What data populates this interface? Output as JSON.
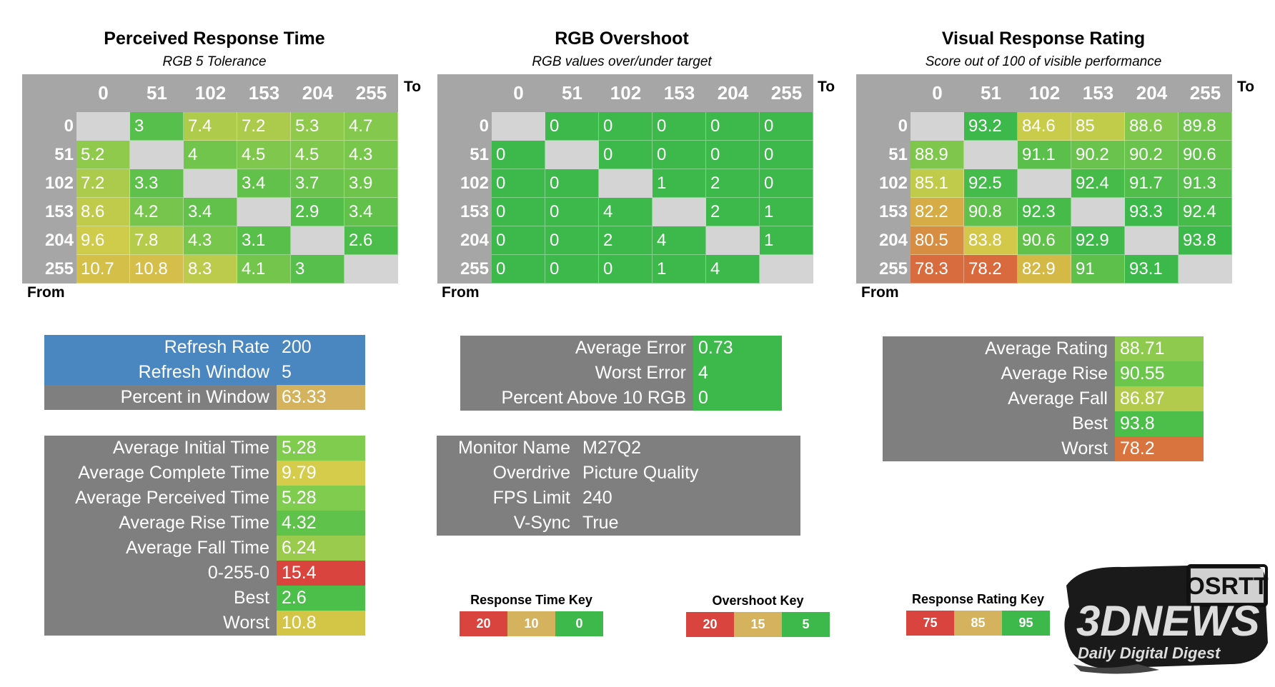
{
  "charts": [
    {
      "title": "Perceived Response Time",
      "subtitle": "RGB 5 Tolerance",
      "to_label": "To",
      "from_label": "From",
      "scale": "rt"
    },
    {
      "title": "RGB Overshoot",
      "subtitle": "RGB values over/under target",
      "to_label": "To",
      "from_label": "From",
      "scale": "os"
    },
    {
      "title": "Visual Response Rating",
      "subtitle": "Score out of 100 of visible performance",
      "to_label": "To",
      "from_label": "From",
      "scale": "vr"
    }
  ],
  "chart_data": [
    {
      "type": "heatmap",
      "title": "Perceived Response Time",
      "subtitle": "RGB 5 Tolerance",
      "xlabel": "To",
      "ylabel": "From",
      "categories": [
        "0",
        "51",
        "102",
        "153",
        "204",
        "255"
      ],
      "values": [
        [
          null,
          3,
          7.4,
          7.2,
          5.3,
          4.7
        ],
        [
          5.2,
          null,
          4,
          4.5,
          4.5,
          4.3
        ],
        [
          7.2,
          3.3,
          null,
          3.4,
          3.7,
          3.9
        ],
        [
          8.6,
          4.2,
          3.4,
          null,
          2.9,
          3.4
        ],
        [
          9.6,
          7.8,
          4.3,
          3.1,
          null,
          2.6
        ],
        [
          10.7,
          10.8,
          8.3,
          4.1,
          3,
          null
        ]
      ]
    },
    {
      "type": "heatmap",
      "title": "RGB Overshoot",
      "subtitle": "RGB values over/under target",
      "xlabel": "To",
      "ylabel": "From",
      "categories": [
        "0",
        "51",
        "102",
        "153",
        "204",
        "255"
      ],
      "values": [
        [
          null,
          0,
          0,
          0,
          0,
          0
        ],
        [
          0,
          null,
          0,
          0,
          0,
          0
        ],
        [
          0,
          0,
          null,
          1,
          2,
          0
        ],
        [
          0,
          0,
          4,
          null,
          2,
          1
        ],
        [
          0,
          0,
          2,
          4,
          null,
          1
        ],
        [
          0,
          0,
          0,
          1,
          4,
          null
        ]
      ]
    },
    {
      "type": "heatmap",
      "title": "Visual Response Rating",
      "subtitle": "Score out of 100 of visible performance",
      "xlabel": "To",
      "ylabel": "From",
      "categories": [
        "0",
        "51",
        "102",
        "153",
        "204",
        "255"
      ],
      "values": [
        [
          null,
          93.2,
          84.6,
          85,
          88.6,
          89.8
        ],
        [
          88.9,
          null,
          91.1,
          90.2,
          90.2,
          90.6
        ],
        [
          85.1,
          92.5,
          null,
          92.4,
          91.7,
          91.3
        ],
        [
          82.2,
          90.8,
          92.3,
          null,
          93.3,
          92.4
        ],
        [
          80.5,
          83.8,
          90.6,
          92.9,
          null,
          93.8
        ],
        [
          78.3,
          78.2,
          82.9,
          91,
          93.1,
          null
        ]
      ]
    }
  ],
  "refresh_panel": {
    "rows": [
      {
        "label": "Refresh Rate",
        "value": "200",
        "style": "blue"
      },
      {
        "label": "Refresh Window",
        "value": "5",
        "style": "blue"
      },
      {
        "label": "Percent in Window",
        "value": "63.33",
        "style": "gray",
        "color": "#d4b25e"
      }
    ]
  },
  "time_panel": {
    "rows": [
      {
        "label": "Average Initial Time",
        "value": "5.28",
        "color": "#7fcc4f"
      },
      {
        "label": "Average Complete Time",
        "value": "9.79",
        "color": "#d4cc4a"
      },
      {
        "label": "Average Perceived Time",
        "value": "5.28",
        "color": "#7fcc4f"
      },
      {
        "label": "Average Rise Time",
        "value": "4.32",
        "color": "#5fc24a"
      },
      {
        "label": "Average Fall Time",
        "value": "6.24",
        "color": "#9acb4c"
      },
      {
        "label": "0-255-0",
        "value": "15.4",
        "color": "#d9443e"
      },
      {
        "label": "Best",
        "value": "2.6",
        "color": "#4cbf4a"
      },
      {
        "label": "Worst",
        "value": "10.8",
        "color": "#d3c646"
      }
    ]
  },
  "error_panel": {
    "rows": [
      {
        "label": "Average Error",
        "value": "0.73",
        "color": "#3cb94a"
      },
      {
        "label": "Worst Error",
        "value": "4",
        "color": "#3cb94a"
      },
      {
        "label": "Percent Above 10 RGB",
        "value": "0",
        "color": "#3cb94a"
      }
    ]
  },
  "info_panel": {
    "rows": [
      {
        "label": "Monitor Name",
        "value": "M27Q2"
      },
      {
        "label": "Overdrive",
        "value": "Picture Quality"
      },
      {
        "label": "FPS Limit",
        "value": "240"
      },
      {
        "label": "V-Sync",
        "value": "True"
      }
    ]
  },
  "rating_panel": {
    "rows": [
      {
        "label": "Average Rating",
        "value": "88.71",
        "color": "#8dca4d"
      },
      {
        "label": "Average Rise",
        "value": "90.55",
        "color": "#6cc64b"
      },
      {
        "label": "Average Fall",
        "value": "86.87",
        "color": "#b3cb4d"
      },
      {
        "label": "Best",
        "value": "93.8",
        "color": "#4cbf4a"
      },
      {
        "label": "Worst",
        "value": "78.2",
        "color": "#d9743e"
      }
    ]
  },
  "keys": [
    {
      "title": "Response Time Key",
      "items": [
        {
          "label": "20",
          "color": "#d9443e"
        },
        {
          "label": "10",
          "color": "#d4b25e"
        },
        {
          "label": "0",
          "color": "#3cb94a"
        }
      ]
    },
    {
      "title": "Overshoot Key",
      "items": [
        {
          "label": "20",
          "color": "#d9443e"
        },
        {
          "label": "15",
          "color": "#d4b25e"
        },
        {
          "label": "5",
          "color": "#3cb94a"
        }
      ]
    },
    {
      "title": "Response Rating Key",
      "items": [
        {
          "label": "75",
          "color": "#d9443e"
        },
        {
          "label": "85",
          "color": "#d4b25e"
        },
        {
          "label": "95",
          "color": "#3cb94a"
        }
      ]
    }
  ],
  "colors": {
    "header_gray": "#a6a6a6",
    "panel_gray": "#7f7f7f",
    "panel_blue": "#4a86bf",
    "diag_gray": "#d4d4d4"
  },
  "logo": {
    "brand": "3DNEWS",
    "tagline": "Daily Digital Digest",
    "badge": "OSRTT"
  }
}
